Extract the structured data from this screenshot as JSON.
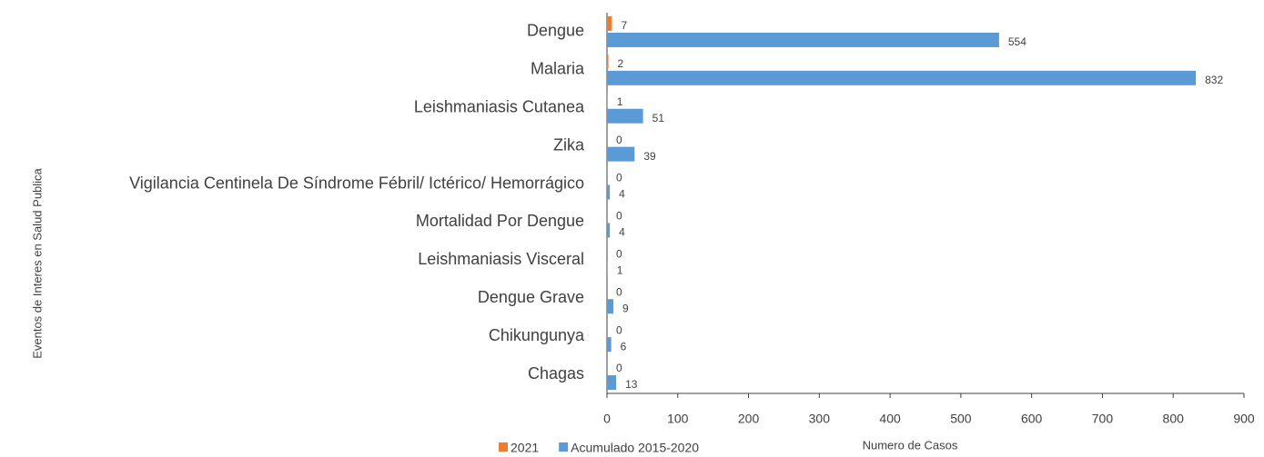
{
  "chart_data": {
    "type": "bar",
    "orientation": "horizontal",
    "x_label": "Numero de Casos",
    "y_label": "Eventos de Interes en Salud Publica",
    "categories": [
      "Dengue",
      "Malaria",
      "Leishmaniasis Cutanea",
      "Zika",
      "Vigilancia Centinela De Síndrome Fébril/ Ictérico/ Hemorrágico",
      "Mortalidad Por Dengue",
      "Leishmaniasis Visceral",
      "Dengue Grave",
      "Chikungunya",
      "Chagas"
    ],
    "series": [
      {
        "name": "2021",
        "color": "#ed7d31",
        "values": [
          7,
          2,
          1,
          0,
          0,
          0,
          0,
          0,
          0,
          0
        ]
      },
      {
        "name": "Acumulado 2015-2020",
        "color": "#5b9bd5",
        "values": [
          554,
          832,
          51,
          39,
          4,
          4,
          1,
          9,
          6,
          13
        ]
      }
    ],
    "xlim": [
      0,
      900
    ],
    "xticks": [
      0,
      100,
      200,
      300,
      400,
      500,
      600,
      700,
      800,
      900
    ],
    "grid": false,
    "legend": "bottom"
  }
}
